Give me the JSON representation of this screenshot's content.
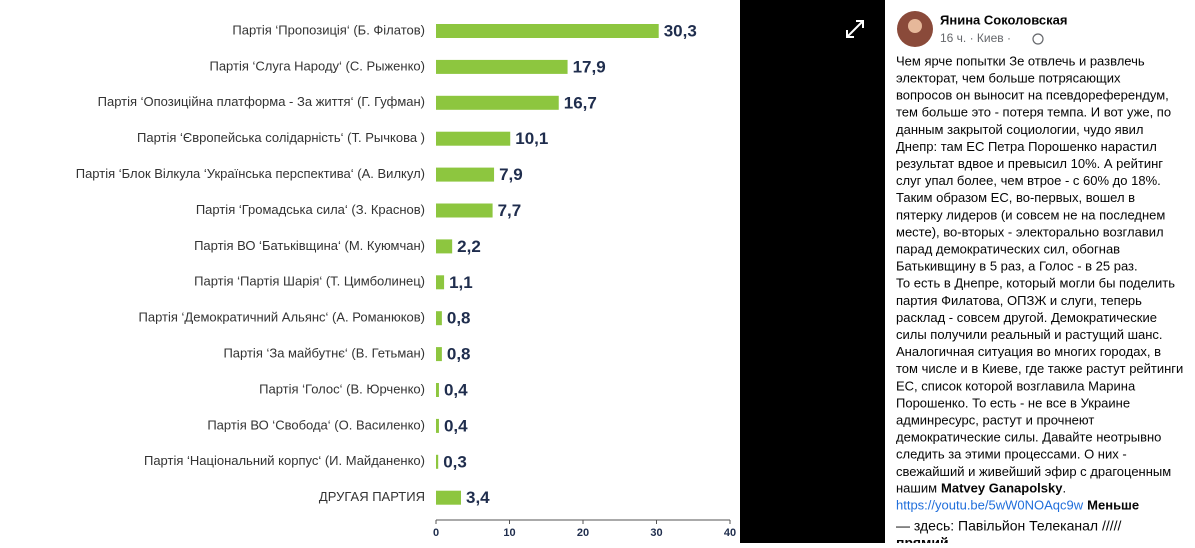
{
  "chart_data": {
    "type": "barh",
    "categories": [
      "Партія ‘Пропозиція‘ (Б. Філатов)",
      "Партія ‘Слуга Народу‘ (С. Рыженко)",
      "Партія ‘Опозиційна платформа - За життя‘ (Г. Гуфман)",
      "Партія ‘Європейська солідарність‘ (Т. Рычкова )",
      "Партія ‘Блок Вілкула ‘Українська перспектива‘ (А. Вилкул)",
      "Партія ‘Громадська сила‘ (З. Краснов)",
      "Партія ВО ‘Батьківщина‘ (М. Куюмчан)",
      "Партія ‘Партія Шарія‘ (Т. Цимболинец)",
      "Партія ‘Демократичний Альянс‘ (А. Романюков)",
      "Партія ‘За майбутнє‘ (В. Гетьман)",
      "Партія ‘Голос‘ (В. Юрченко)",
      "Партія ВО ‘Свобода‘ (О. Василенко)",
      "Партія ‘Національний корпус‘ (И. Майданенко)",
      "ДРУГАЯ ПАРТИЯ"
    ],
    "values": [
      30.3,
      17.9,
      16.7,
      10.1,
      7.9,
      7.7,
      2.2,
      1.1,
      0.8,
      0.8,
      0.4,
      0.4,
      0.3,
      3.4
    ],
    "value_labels": [
      "30,3",
      "17,9",
      "16,7",
      "10,1",
      "7,9",
      "7,7",
      "2,2",
      "1,1",
      "0,8",
      "0,8",
      "0,4",
      "0,4",
      "0,3",
      "3,4"
    ],
    "color": "#8dc63f",
    "xlim": [
      0,
      40
    ],
    "xticks": [
      0,
      10,
      20,
      30,
      40
    ]
  },
  "post": {
    "author": "Янина Соколовская",
    "meta": "16 ч. · Киев ·",
    "lines": [
      "Чем ярче попытки Зе отвлечь и развлечь",
      "электорат, чем больше потрясающих",
      "вопросов он выносит на псевдореферендум,",
      "тем больше это - потеря темпа. И вот уже, по",
      "данным закрытой социологии, чудо явил",
      "Днепр: там ЕС Петра Порошенко нарастил",
      "результат вдвое и превысил 10%. А рейтинг",
      "слуг упал более, чем втрое - с 60% до 18%.",
      "Таким образом ЕС, во-первых, вошел в",
      "пятерку лидеров (и совсем не на последнем",
      "месте), во-вторых - электорально возглавил",
      "парад демократических сил, обогнав",
      "Батькивщину в 5 раз, а Голос - в 25 раз.",
      "То есть в Днепре, который могли бы поделить",
      "партия Филатова, ОПЗЖ и слуги, теперь",
      "расклад - совсем другой. Демократические",
      "силы получили реальный и растущий шанс.",
      "Аналогичная ситуация во многих городах, в",
      "том числе и в Киеве, где также растут рейтинги",
      "ЕС, список которой возглавила Марина",
      "Порошенко. То есть - не все в Украине",
      "админресурс, растут и прочнеют",
      "демократические силы. Давайте неотрывно",
      "следить за этими процессами. О них -",
      "свежайший и живейший эфир с драгоценным"
    ],
    "mention_prefix": "нашим",
    "mention": "Matvey Ganapolsky",
    "mention_suffix": ".",
    "link": "https://youtu.be/5wW0NOAqc9w",
    "less": "Меньше",
    "preview": "— здесь: Павільйон Телеканал /////",
    "preview_cut": "прямий"
  }
}
